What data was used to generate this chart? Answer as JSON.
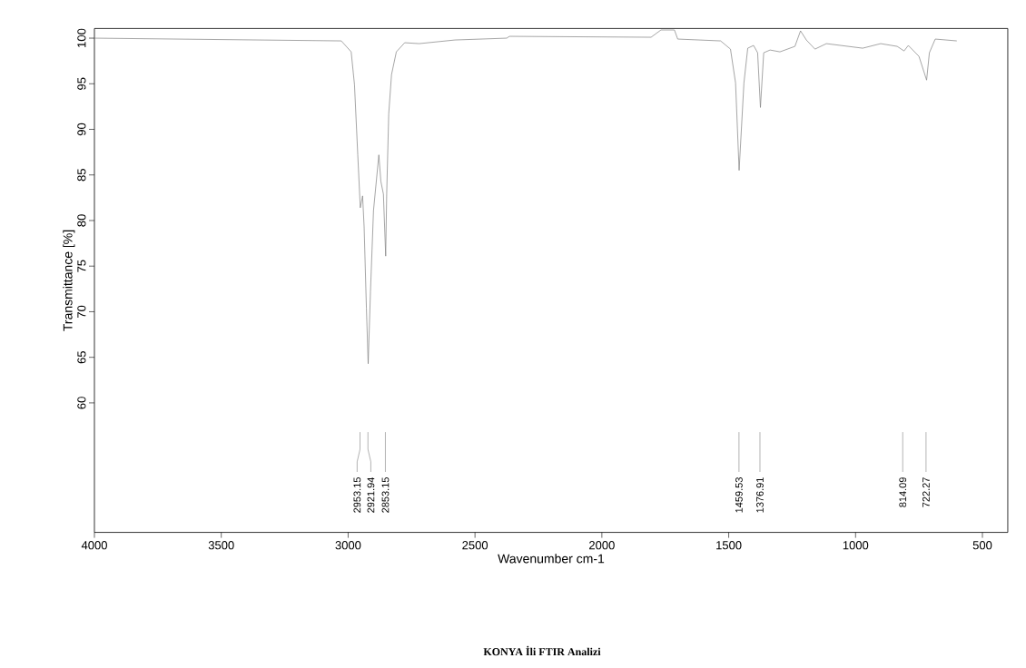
{
  "chart_data": {
    "type": "line",
    "title": "KONYA İli FTIR Analizi",
    "xlabel": "Wavenumber cm-1",
    "ylabel": "Transmittance [%]",
    "x": [
      4000,
      3027,
      2988,
      2975,
      2962,
      2952,
      2943,
      2937,
      2928,
      2921,
      2912,
      2900,
      2879,
      2871,
      2861,
      2852,
      2848,
      2840,
      2829,
      2810,
      2777,
      2720,
      2579,
      2375,
      2364,
      1806,
      1767,
      1714,
      1701,
      1532,
      1493,
      1473,
      1459,
      1440,
      1425,
      1402,
      1386,
      1375,
      1362,
      1337,
      1298,
      1239,
      1217,
      1194,
      1160,
      1115,
      972,
      901,
      836,
      809,
      792,
      750,
      720,
      709,
      686,
      601
    ],
    "series": [
      {
        "color": "#808080",
        "values": [
          100.0,
          99.7,
          98.5,
          94.9,
          87.2,
          81.4,
          82.7,
          79.3,
          70.4,
          64.3,
          72.2,
          81.1,
          87.2,
          84.3,
          82.9,
          76.1,
          82.9,
          91.7,
          96.0,
          98.5,
          99.5,
          99.4,
          99.8,
          100.0,
          100.2,
          100.1,
          100.9,
          100.9,
          99.9,
          99.7,
          98.8,
          95.1,
          85.5,
          95.1,
          98.9,
          99.2,
          98.4,
          92.4,
          98.4,
          98.7,
          98.5,
          99.1,
          100.8,
          99.8,
          98.8,
          99.4,
          98.9,
          99.4,
          99.1,
          98.6,
          99.2,
          98.0,
          95.4,
          98.4,
          99.9,
          99.7
        ]
      }
    ],
    "xlim": [
      4000,
      400
    ],
    "ylim": [
      45.8,
      101.06
    ],
    "xticks": [
      4000,
      3500,
      3000,
      2500,
      2000,
      1500,
      1000,
      500
    ],
    "yticks": [
      60,
      65,
      70,
      75,
      80,
      85,
      90,
      95,
      100
    ],
    "annotations": [
      {
        "text": "2953.15",
        "x": 2953.15
      },
      {
        "text": "2921.94",
        "x": 2921.94
      },
      {
        "text": "2853.15",
        "x": 2853.15
      },
      {
        "text": "1459.53",
        "x": 1459.53
      },
      {
        "text": "1376.91",
        "x": 1376.91
      },
      {
        "text": "814.09",
        "x": 814.09
      },
      {
        "text": "722.27",
        "x": 722.27
      }
    ]
  }
}
